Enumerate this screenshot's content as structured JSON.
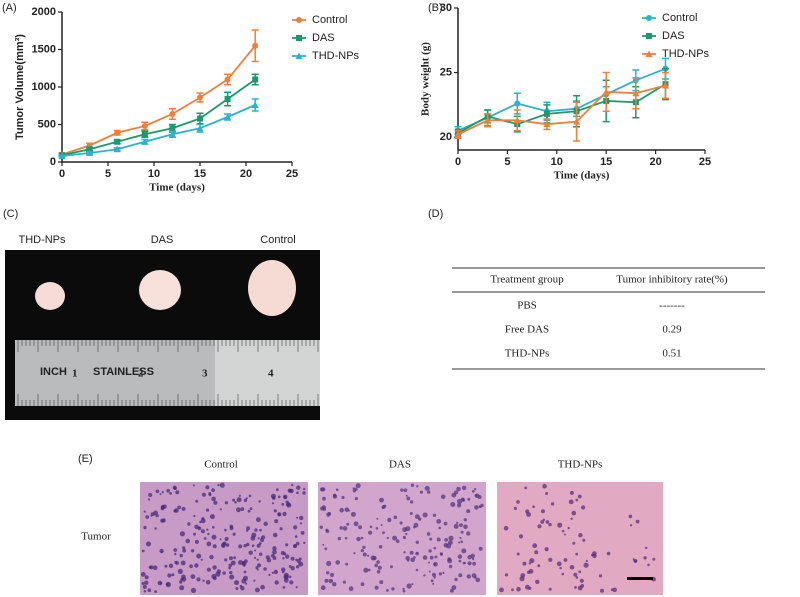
{
  "chart_data": [
    {
      "type": "line",
      "panel": "(A)",
      "xlabel": "Time (days)",
      "ylabel": "Tumor Volume(mm³)",
      "x": [
        0,
        3,
        6,
        9,
        12,
        15,
        18,
        21
      ],
      "xlim": [
        0,
        25
      ],
      "xticks": [
        0,
        5,
        10,
        15,
        20,
        25
      ],
      "ylim": [
        0,
        2000
      ],
      "yticks": [
        0,
        500,
        1000,
        1500,
        2000
      ],
      "series": [
        {
          "name": "Control",
          "color": "#f07f3c",
          "marker": "circle",
          "values": [
            100,
            220,
            390,
            480,
            640,
            860,
            1100,
            1550
          ],
          "errors": [
            20,
            30,
            30,
            50,
            70,
            60,
            70,
            210
          ]
        },
        {
          "name": "DAS",
          "color": "#1a9a6c",
          "marker": "square",
          "values": [
            90,
            170,
            270,
            370,
            450,
            580,
            840,
            1100
          ],
          "errors": [
            15,
            20,
            25,
            40,
            50,
            70,
            90,
            70
          ]
        },
        {
          "name": "THD-NPs",
          "color": "#2ab3c9",
          "marker": "triangle",
          "values": [
            80,
            120,
            170,
            270,
            370,
            450,
            600,
            760
          ],
          "errors": [
            10,
            15,
            20,
            30,
            40,
            50,
            40,
            80
          ]
        }
      ]
    },
    {
      "type": "line",
      "panel": "(B)",
      "xlabel": "Time (days)",
      "ylabel": "Body weight (g)",
      "x": [
        0,
        3,
        6,
        9,
        12,
        15,
        18,
        21
      ],
      "xlim": [
        0,
        25
      ],
      "xticks": [
        0,
        5,
        10,
        15,
        20,
        25
      ],
      "ylim": [
        19,
        30
      ],
      "yticks": [
        20,
        25,
        30
      ],
      "series": [
        {
          "name": "Control",
          "color": "#2ab3c9",
          "marker": "circle",
          "values": [
            20.5,
            21.5,
            22.6,
            22.0,
            22.2,
            23.3,
            24.4,
            25.3
          ],
          "errors": [
            0.3,
            0.6,
            0.8,
            0.7,
            0.6,
            0.6,
            0.8,
            0.8
          ]
        },
        {
          "name": "DAS",
          "color": "#1a9a6c",
          "marker": "square",
          "values": [
            20.3,
            21.6,
            21.0,
            21.8,
            22.0,
            22.8,
            22.7,
            24.1
          ],
          "errors": [
            0.3,
            0.5,
            0.6,
            0.7,
            1.2,
            1.6,
            1.2,
            1.2
          ]
        },
        {
          "name": "THD-NPs",
          "color": "#f07f3c",
          "marker": "triangle",
          "values": [
            20.2,
            21.3,
            21.3,
            21.0,
            21.2,
            23.5,
            23.4,
            24.0
          ],
          "errors": [
            0.3,
            0.5,
            0.8,
            0.4,
            1.5,
            1.5,
            1.2,
            1.0
          ]
        }
      ]
    }
  ],
  "photo": {
    "panel": "(C)",
    "labels": [
      "THD-NPs",
      "DAS",
      "Control"
    ],
    "ruler": [
      "INCH",
      "1",
      "STAINLESS",
      "2",
      "3",
      "4"
    ]
  },
  "table": {
    "panel": "(D)",
    "header": [
      "Treatment group",
      "Tumor inhibitory rate(%)"
    ],
    "rows": [
      [
        "PBS",
        "-------"
      ],
      [
        "Free DAS",
        "0.29"
      ],
      [
        "THD-NPs",
        "0.51"
      ]
    ]
  },
  "histology": {
    "panel": "(E)",
    "columns": [
      "Control",
      "DAS",
      "THD-NPs"
    ],
    "row": "Tumor"
  }
}
